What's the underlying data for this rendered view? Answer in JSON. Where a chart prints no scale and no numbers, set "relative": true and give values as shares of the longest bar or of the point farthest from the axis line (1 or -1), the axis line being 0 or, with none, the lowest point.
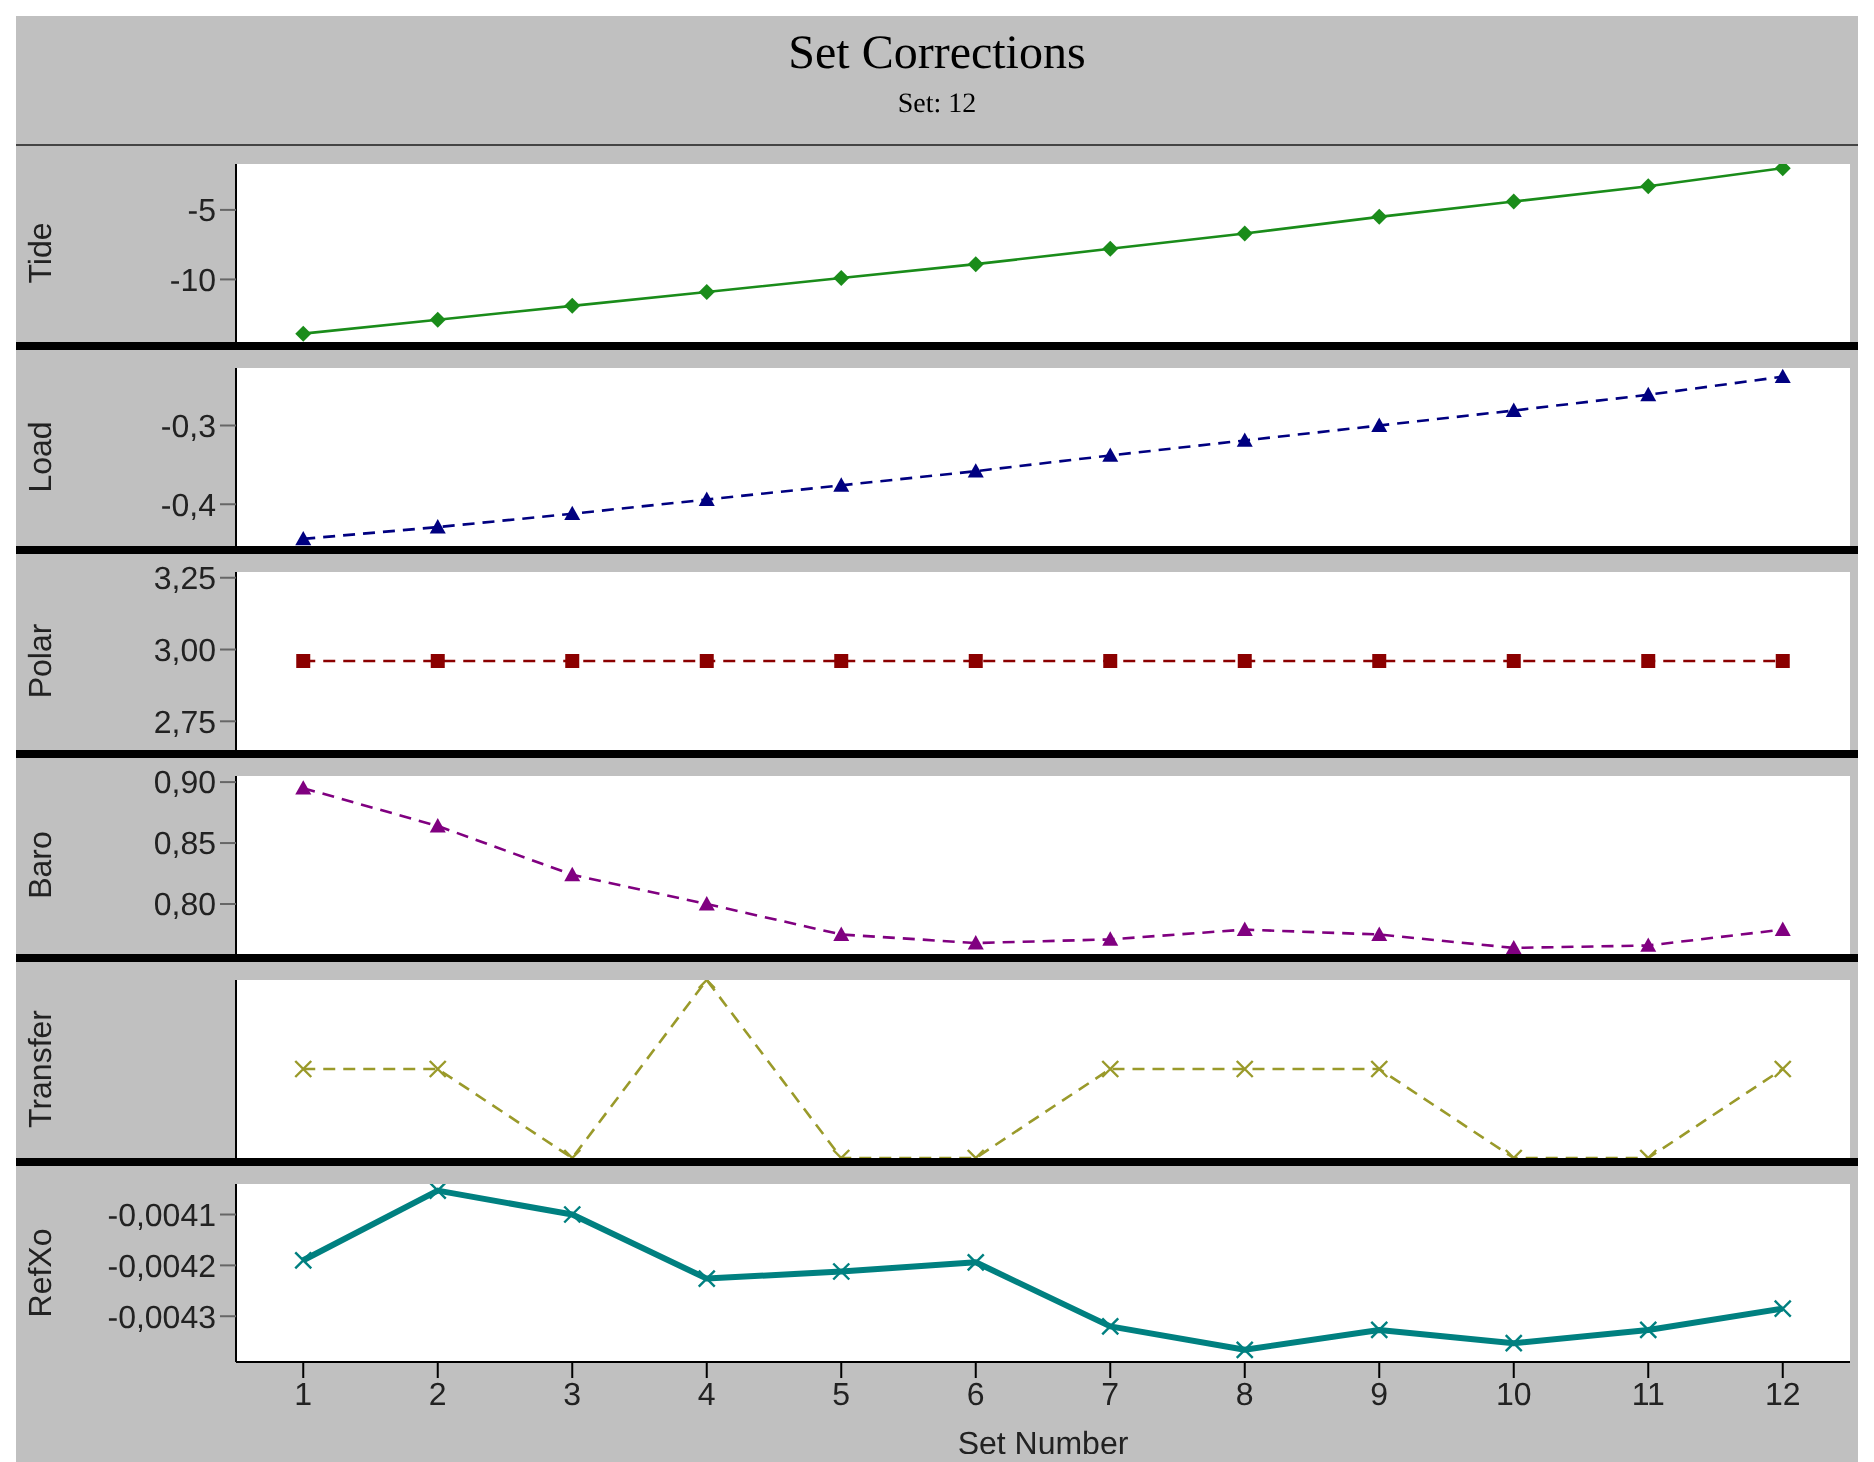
{
  "chart_data": [
    {
      "type": "line",
      "title": "Set Corrections",
      "subtitle": "Set: 12",
      "ylabel": "Tide",
      "x": [
        1,
        2,
        3,
        4,
        5,
        6,
        7,
        8,
        9,
        10,
        11,
        12
      ],
      "xlim": [
        0.5,
        12.5
      ],
      "xticks": [
        1,
        2,
        3,
        4,
        5,
        6,
        7,
        8,
        9,
        10,
        11,
        12
      ],
      "ylim": [
        -14.5,
        -1.7
      ],
      "yticks": [
        -10,
        -5
      ],
      "tick_labels": "y",
      "marker": "diamond",
      "line_style": "solid",
      "grid": false,
      "legend": false,
      "series": [
        {
          "color": "#1a8c1a",
          "values": [
            -13.9,
            -12.9,
            -11.9,
            -10.9,
            -9.9,
            -8.9,
            -7.8,
            -6.7,
            -5.5,
            -4.4,
            -3.3,
            -2.0
          ]
        }
      ]
    },
    {
      "type": "line",
      "ylabel": "Load",
      "x": [
        1,
        2,
        3,
        4,
        5,
        6,
        7,
        8,
        9,
        10,
        11,
        12
      ],
      "xlim": [
        0.5,
        12.5
      ],
      "xticks": [
        1,
        2,
        3,
        4,
        5,
        6,
        7,
        8,
        9,
        10,
        11,
        12
      ],
      "ylim": [
        -0.453,
        -0.227
      ],
      "yticks": [
        {
          "value": -0.4,
          "label": "-0,4"
        },
        {
          "value": -0.3,
          "label": "-0,3"
        }
      ],
      "tick_labels": "y",
      "marker": "triangle",
      "line_style": "dashed",
      "grid": false,
      "legend": false,
      "series": [
        {
          "color": "#000080",
          "values": [
            -0.444,
            -0.429,
            -0.412,
            -0.394,
            -0.376,
            -0.358,
            -0.338,
            -0.319,
            -0.3,
            -0.281,
            -0.261,
            -0.238
          ]
        }
      ]
    },
    {
      "type": "line",
      "ylabel": "Polar",
      "x": [
        1,
        2,
        3,
        4,
        5,
        6,
        7,
        8,
        9,
        10,
        11,
        12
      ],
      "xlim": [
        0.5,
        12.5
      ],
      "xticks": [
        1,
        2,
        3,
        4,
        5,
        6,
        7,
        8,
        9,
        10,
        11,
        12
      ],
      "ylim": [
        2.65,
        3.27
      ],
      "yticks": [
        {
          "value": 2.75,
          "label": "2,75"
        },
        {
          "value": 3.0,
          "label": "3,00"
        },
        {
          "value": 3.25,
          "label": "3,25"
        }
      ],
      "tick_labels": "y",
      "marker": "square",
      "line_style": "dashed",
      "grid": false,
      "legend": false,
      "series": [
        {
          "color": "#8b0000",
          "values": [
            2.96,
            2.96,
            2.96,
            2.96,
            2.96,
            2.96,
            2.96,
            2.96,
            2.96,
            2.96,
            2.96,
            2.96
          ]
        }
      ]
    },
    {
      "type": "line",
      "ylabel": "Baro",
      "x": [
        1,
        2,
        3,
        4,
        5,
        6,
        7,
        8,
        9,
        10,
        11,
        12
      ],
      "xlim": [
        0.5,
        12.5
      ],
      "xticks": [
        1,
        2,
        3,
        4,
        5,
        6,
        7,
        8,
        9,
        10,
        11,
        12
      ],
      "ylim": [
        0.759,
        0.905
      ],
      "yticks": [
        {
          "value": 0.8,
          "label": "0,80"
        },
        {
          "value": 0.85,
          "label": "0,85"
        },
        {
          "value": 0.9,
          "label": "0,90"
        }
      ],
      "tick_labels": "y",
      "marker": "triangle",
      "line_style": "dashed",
      "grid": false,
      "legend": false,
      "series": [
        {
          "color": "#800080",
          "values": [
            0.895,
            0.864,
            0.824,
            0.8,
            0.775,
            0.768,
            0.771,
            0.779,
            0.775,
            0.764,
            0.766,
            0.779
          ]
        }
      ]
    },
    {
      "type": "line",
      "ylabel": "Transfer",
      "relative": true,
      "x": [
        1,
        2,
        3,
        4,
        5,
        6,
        7,
        8,
        9,
        10,
        11,
        12
      ],
      "xlim": [
        0.5,
        12.5
      ],
      "xticks": [
        1,
        2,
        3,
        4,
        5,
        6,
        7,
        8,
        9,
        10,
        11,
        12
      ],
      "tick_labels": false,
      "marker": "cross",
      "line_style": "dashed",
      "grid": false,
      "legend": false,
      "series": [
        {
          "color": "#9a9a2a",
          "values": [
            0.5,
            0.5,
            0,
            1,
            0,
            0,
            0.5,
            0.5,
            0.5,
            0,
            0,
            0.5
          ]
        }
      ]
    },
    {
      "type": "line",
      "ylabel": "RefXo",
      "xlabel": "Set Number",
      "x": [
        1,
        2,
        3,
        4,
        5,
        6,
        7,
        8,
        9,
        10,
        11,
        12
      ],
      "xlim": [
        0.5,
        12.5
      ],
      "xticks": [
        1,
        2,
        3,
        4,
        5,
        6,
        7,
        8,
        9,
        10,
        11,
        12
      ],
      "ylim": [
        -0.00439,
        -0.00404
      ],
      "yticks": [
        {
          "value": -0.0043,
          "label": "-0,0043"
        },
        {
          "value": -0.0042,
          "label": "-0,0042"
        },
        {
          "value": -0.0041,
          "label": "-0,0041"
        }
      ],
      "marker": "cross",
      "line_style": "solid",
      "grid": false,
      "legend": false,
      "series": [
        {
          "color": "#008080",
          "values": [
            -0.00419,
            -0.004053,
            -0.0041,
            -0.004226,
            -0.004212,
            -0.004194,
            -0.00432,
            -0.004366,
            -0.004327,
            -0.004353,
            -0.004327,
            -0.004285
          ]
        }
      ]
    }
  ]
}
